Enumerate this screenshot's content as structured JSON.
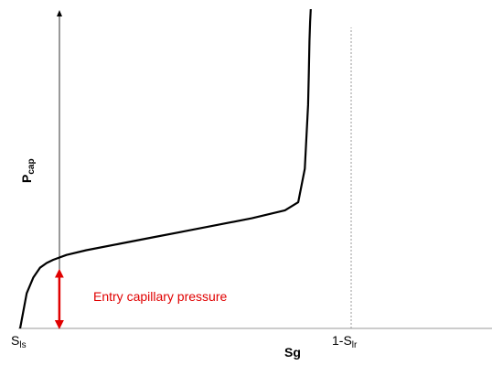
{
  "chart_data": {
    "type": "line",
    "xlabel": "Sg",
    "ylabel": {
      "main": "P",
      "sub": "cap"
    },
    "x_ticks": [
      {
        "main": "S",
        "sub": "ls"
      },
      {
        "main": "1-S",
        "sub": "lr"
      }
    ],
    "annotation": {
      "text": "Entry capillary pressure",
      "color": "#e00000"
    },
    "grid": false,
    "curve_color": "#000000",
    "series": [
      {
        "x": [
          0.0,
          0.02,
          0.04,
          0.06,
          0.08,
          0.1,
          0.14,
          0.2,
          0.3,
          0.4,
          0.5,
          0.6,
          0.7,
          0.8,
          0.84,
          0.86,
          0.87,
          0.872,
          0.874,
          0.876,
          0.878
        ],
        "y": [
          0.0,
          0.11,
          0.16,
          0.19,
          0.205,
          0.215,
          0.23,
          0.245,
          0.265,
          0.285,
          0.305,
          0.325,
          0.345,
          0.37,
          0.395,
          0.5,
          0.7,
          0.8,
          0.9,
          0.96,
          1.0
        ]
      }
    ],
    "entry_point": {
      "x": 0.124,
      "y": 0.19
    }
  }
}
